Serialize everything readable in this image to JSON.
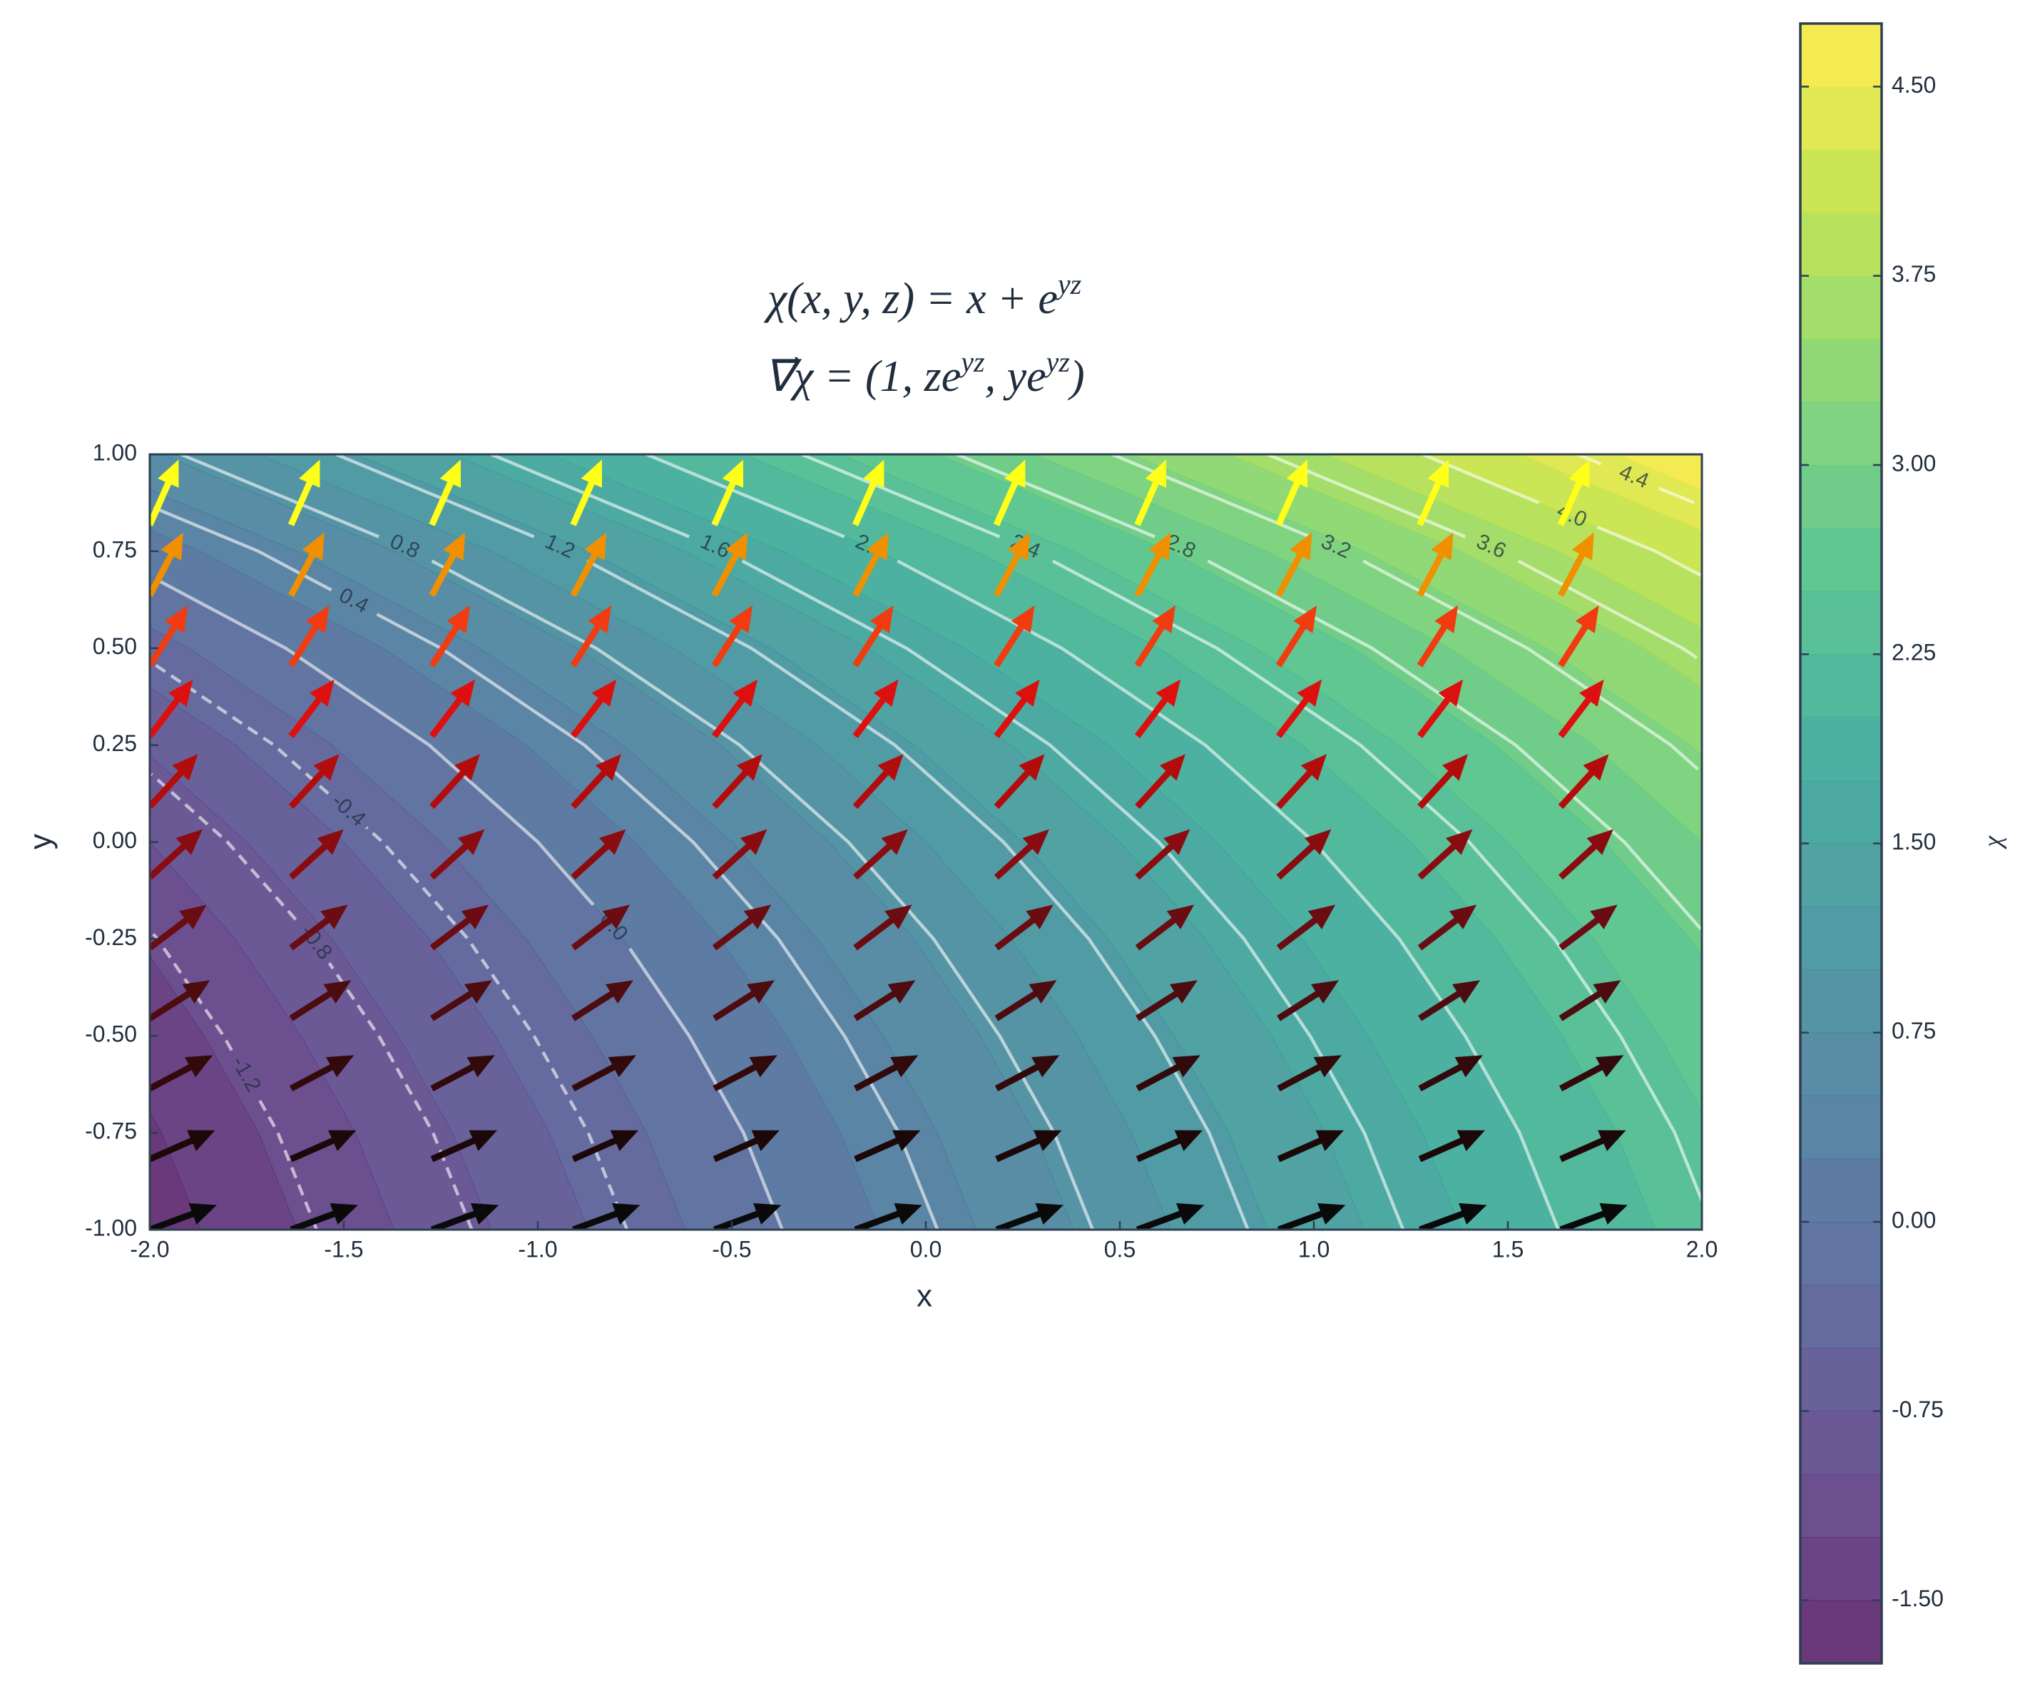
{
  "chart_data": {
    "type": "contourf",
    "title": [
      [
        "χ(x, y, z) = x + e",
        "yz"
      ],
      [
        "∇⃗χ = (1, ze",
        "yz",
        ", ye",
        "yz",
        ")"
      ]
    ],
    "x_label": "x",
    "y_label": "y",
    "colorbar_label": "χ",
    "xlim": [
      -2,
      2
    ],
    "ylim": [
      -1,
      1
    ],
    "xticks": [
      {
        "value": -2,
        "label": "-2.0"
      },
      -1.5,
      {
        "value": -1,
        "label": "-1.0"
      },
      -0.5,
      {
        "value": 0,
        "label": "0.0"
      },
      0.5,
      {
        "value": 1,
        "label": "1.0"
      },
      1.5,
      {
        "value": 2,
        "label": "2.0"
      }
    ],
    "yticks": [
      {
        "value": -1,
        "label": "-1.00"
      },
      {
        "value": -0.75,
        "label": "-0.75"
      },
      {
        "value": -0.5,
        "label": "-0.50"
      },
      {
        "value": -0.25,
        "label": "-0.25"
      },
      {
        "value": 0,
        "label": "0.00"
      },
      {
        "value": 0.25,
        "label": "0.25"
      },
      {
        "value": 0.5,
        "label": "0.50"
      },
      {
        "value": 0.75,
        "label": "0.75"
      },
      {
        "value": 1,
        "label": "1.00"
      }
    ],
    "field": {
      "x": [
        -2,
        -1.5,
        -1,
        -0.5,
        0,
        0.5,
        1,
        1.5,
        2
      ],
      "y": [
        -1,
        -0.75,
        -0.5,
        -0.25,
        0,
        0.25,
        0.5,
        0.75,
        1
      ],
      "z": [
        [
          -1.63,
          -1.13,
          -0.63,
          -0.13,
          0.37,
          0.87,
          1.37,
          1.87,
          2.37
        ],
        [
          -1.53,
          -1.03,
          -0.53,
          -0.03,
          0.47,
          0.97,
          1.47,
          1.97,
          2.47
        ],
        [
          -1.39,
          -0.89,
          -0.39,
          0.11,
          0.61,
          1.11,
          1.61,
          2.11,
          2.61
        ],
        [
          -1.22,
          -0.72,
          -0.22,
          0.28,
          0.78,
          1.28,
          1.78,
          2.28,
          2.78
        ],
        [
          -1,
          -0.5,
          0,
          0.5,
          1,
          1.5,
          2,
          2.5,
          3
        ],
        [
          -0.72,
          -0.22,
          0.28,
          0.78,
          1.28,
          1.78,
          2.28,
          2.78,
          3.28
        ],
        [
          -0.35,
          0.15,
          0.65,
          1.15,
          1.65,
          2.15,
          2.65,
          3.15,
          3.65
        ],
        [
          0.12,
          0.62,
          1.12,
          1.62,
          2.12,
          2.62,
          3.12,
          3.62,
          4.12
        ],
        [
          0.72,
          1.22,
          1.72,
          2.22,
          2.72,
          3.22,
          3.72,
          4.22,
          4.72
        ]
      ]
    },
    "fill_levels": [
      -1.75,
      -1.5,
      -1.25,
      -1,
      -0.75,
      -0.5,
      -0.25,
      0,
      0.25,
      0.5,
      0.75,
      1,
      1.25,
      1.5,
      1.75,
      2,
      2.25,
      2.5,
      2.75,
      3,
      3.25,
      3.5,
      3.75,
      4,
      4.25,
      4.5,
      4.75
    ],
    "colormap": [
      "#440154",
      "#482878",
      "#3e4989",
      "#31688e",
      "#26828e",
      "#1f9e89",
      "#35b779",
      "#6ece58",
      "#b5de2b",
      "#fde725"
    ],
    "alpha": 0.8,
    "zlim": [
      -1.75,
      4.75
    ],
    "zticks": [
      {
        "value": -1.5,
        "label": "-1.50"
      },
      -0.75,
      {
        "value": 0,
        "label": "0.00"
      },
      0.75,
      {
        "value": 1.5,
        "label": "1.50"
      },
      2.25,
      {
        "value": 3,
        "label": "3.00"
      },
      3.75,
      {
        "value": 4.5,
        "label": "4.50"
      }
    ],
    "contour_levels": [
      -1.2,
      -0.8,
      -0.4,
      {
        "value": 0,
        "label": "0.0"
      },
      0.4,
      0.8,
      1.2,
      1.6,
      {
        "value": 2,
        "label": "2.0"
      },
      2.4,
      2.8,
      3.2,
      3.6,
      {
        "value": 4,
        "label": "4.0"
      },
      4.4
    ],
    "contour_color": "#ffffff",
    "quiver": {
      "x": [
        -2,
        -1.636,
        -1.273,
        -0.909,
        -0.545,
        -0.182,
        0.182,
        0.545,
        0.909,
        1.273,
        1.636
      ],
      "y": [
        -1,
        -0.818,
        -0.636,
        -0.455,
        -0.273,
        -0.091,
        0.091,
        0.273,
        0.455,
        0.636,
        0.818
      ],
      "u": [
        1,
        1,
        1,
        1,
        1,
        1,
        1,
        1,
        1,
        1,
        1
      ],
      "v": [
        0.368,
        0.441,
        0.529,
        0.635,
        0.761,
        0.913,
        1.095,
        1.314,
        1.576,
        1.889,
        2.266
      ],
      "colors": [
        "#0a0a0a",
        "#1c0808",
        "#330a0c",
        "#4d0c10",
        "#6b0c12",
        "#8a0c10",
        "#b30c0c",
        "#dd1010",
        "#f03c10",
        "#f09000",
        "#ffff1a"
      ]
    }
  }
}
